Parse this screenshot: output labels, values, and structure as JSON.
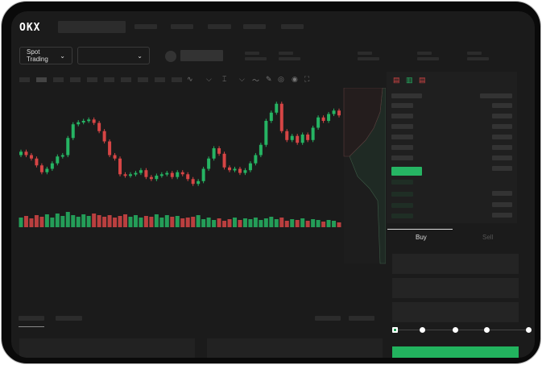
{
  "header": {
    "logo": "OKX"
  },
  "market": {
    "mode_label": "Spot Trading",
    "pair_value": ""
  },
  "orderbook": {
    "view_icons": [
      "both-sides-icon",
      "bids-only-icon",
      "asks-only-icon"
    ]
  },
  "trade": {
    "tabs": [
      "Buy",
      "Sell"
    ],
    "active_tab": "Buy",
    "leverage_steps": 5,
    "leverage_selected": 0
  },
  "colors": {
    "up": "#26b463",
    "down": "#d64545",
    "accent": "#22b35e"
  },
  "chart_data": {
    "type": "candlestick",
    "close": [
      95,
      90,
      85,
      75,
      65,
      70,
      78,
      88,
      90,
      115,
      135,
      138,
      140,
      142,
      137,
      125,
      110,
      90,
      85,
      62,
      60,
      62,
      64,
      68,
      58,
      55,
      60,
      62,
      64,
      58,
      65,
      62,
      55,
      48,
      52,
      70,
      85,
      100,
      92,
      72,
      68,
      70,
      64,
      68,
      78,
      90,
      105,
      140,
      152,
      165,
      125,
      112,
      118,
      108,
      120,
      112,
      130,
      145,
      140,
      150,
      155,
      148
    ],
    "volume": [
      12,
      14,
      11,
      15,
      13,
      16,
      12,
      17,
      14,
      19,
      15,
      13,
      16,
      14,
      17,
      15,
      13,
      15,
      12,
      14,
      16,
      13,
      15,
      12,
      14,
      13,
      16,
      12,
      15,
      13,
      14,
      11,
      12,
      13,
      15,
      10,
      12,
      9,
      11,
      8,
      10,
      12,
      9,
      11,
      10,
      12,
      9,
      11,
      13,
      10,
      12,
      8,
      10,
      9,
      11,
      8,
      10,
      9,
      7,
      9,
      8,
      6
    ]
  }
}
